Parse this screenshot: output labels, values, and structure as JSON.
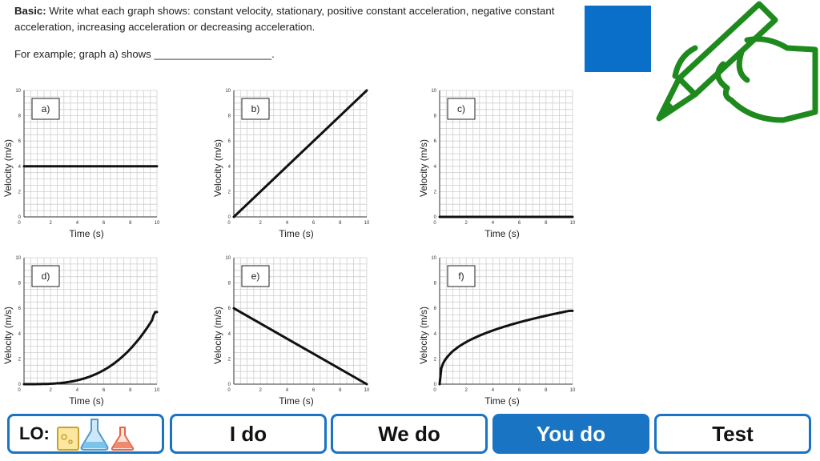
{
  "instructions": {
    "bold": "Basic:",
    "text": " Write what each graph shows: constant velocity, stationary, positive constant acceleration, negative constant acceleration, increasing acceleration or decreasing acceleration."
  },
  "example": "For example; graph a) shows ____________________.",
  "graphs": [
    {
      "label": "a)",
      "xlabel": "Time (s)",
      "ylabel": "Velocity (m/s)",
      "curve": "constant",
      "values": [
        [
          0,
          4
        ],
        [
          10,
          4
        ]
      ]
    },
    {
      "label": "b)",
      "xlabel": "Time (s)",
      "ylabel": "Velocity (m/s)",
      "curve": "linear-up",
      "values": [
        [
          0,
          0
        ],
        [
          10,
          10
        ]
      ]
    },
    {
      "label": "c)",
      "xlabel": "Time (s)",
      "ylabel": "Velocity (m/s)",
      "curve": "zero",
      "values": [
        [
          0,
          0
        ],
        [
          10,
          0
        ]
      ]
    },
    {
      "label": "d)",
      "xlabel": "Time (s)",
      "ylabel": "Velocity (m/s)",
      "curve": "increasing-acceleration",
      "values": [
        [
          0,
          0
        ],
        [
          2,
          0.1
        ],
        [
          4,
          0.5
        ],
        [
          6,
          1.3
        ],
        [
          8,
          2.8
        ],
        [
          9.5,
          4.6
        ],
        [
          10,
          5.7
        ]
      ]
    },
    {
      "label": "e)",
      "xlabel": "Time (s)",
      "ylabel": "Velocity (m/s)",
      "curve": "linear-down",
      "values": [
        [
          0,
          6
        ],
        [
          10,
          0
        ]
      ]
    },
    {
      "label": "f)",
      "xlabel": "Time (s)",
      "ylabel": "Velocity (m/s)",
      "curve": "decreasing-acceleration",
      "values": [
        [
          0,
          0
        ],
        [
          0.3,
          1.6
        ],
        [
          1,
          2.7
        ],
        [
          2,
          3.6
        ],
        [
          4,
          4.7
        ],
        [
          6,
          5.3
        ],
        [
          8,
          5.6
        ],
        [
          10,
          5.8
        ]
      ]
    }
  ],
  "axis": {
    "xticks": [
      "0",
      "2",
      "4",
      "6",
      "8",
      "10"
    ],
    "yticks": [
      "0",
      "2",
      "4",
      "6",
      "8",
      "10"
    ],
    "xmax": 10,
    "ymax": 10
  },
  "nav": {
    "lo": "LO:",
    "i_do": "I do",
    "we_do": "We do",
    "you_do": "You do",
    "test": "Test"
  },
  "colors": {
    "accent": "#1a74c4",
    "square": "#0a6fc9",
    "pencil": "#1e8a1e"
  },
  "icons": {
    "pencil": "hand-with-pencil-icon",
    "lab": "lab-flasks-icon"
  }
}
